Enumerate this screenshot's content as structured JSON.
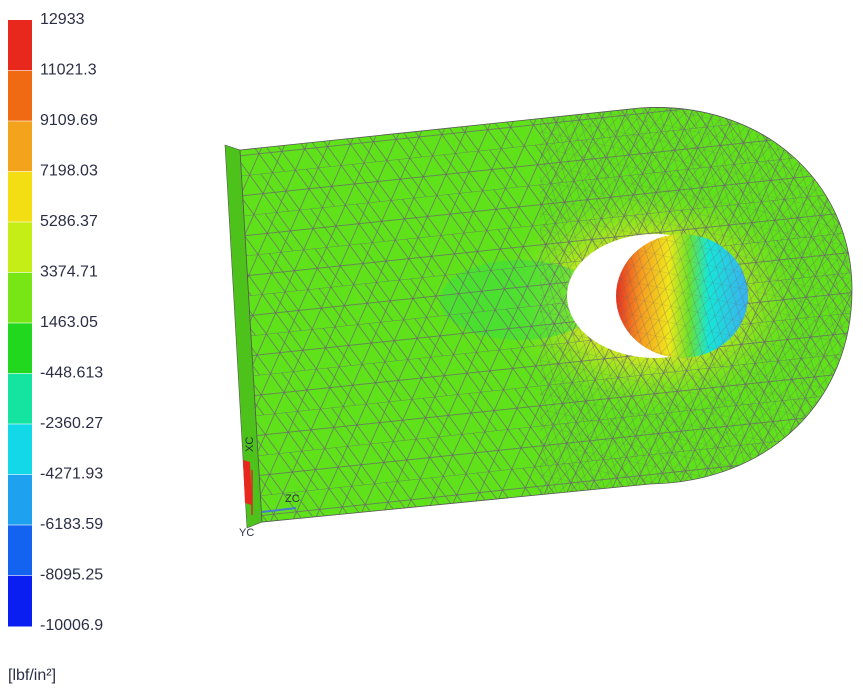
{
  "legend": {
    "labels": [
      12933,
      11021.3,
      9109.69,
      7198.03,
      5286.37,
      3374.71,
      1463.05,
      -448.613,
      -2360.27,
      -4271.93,
      -6183.59,
      -8095.25,
      -10006.9
    ],
    "colors": [
      "#e8281c",
      "#f06a14",
      "#f4a41c",
      "#f2de12",
      "#c4ee16",
      "#78e614",
      "#22d81e",
      "#14e4a0",
      "#12d8e8",
      "#1ea2f0",
      "#1462f0",
      "#0a1ef2"
    ],
    "unit": "[lbf/in²]"
  },
  "triad": {
    "x": "XC",
    "y": "YC",
    "z": "ZC"
  }
}
